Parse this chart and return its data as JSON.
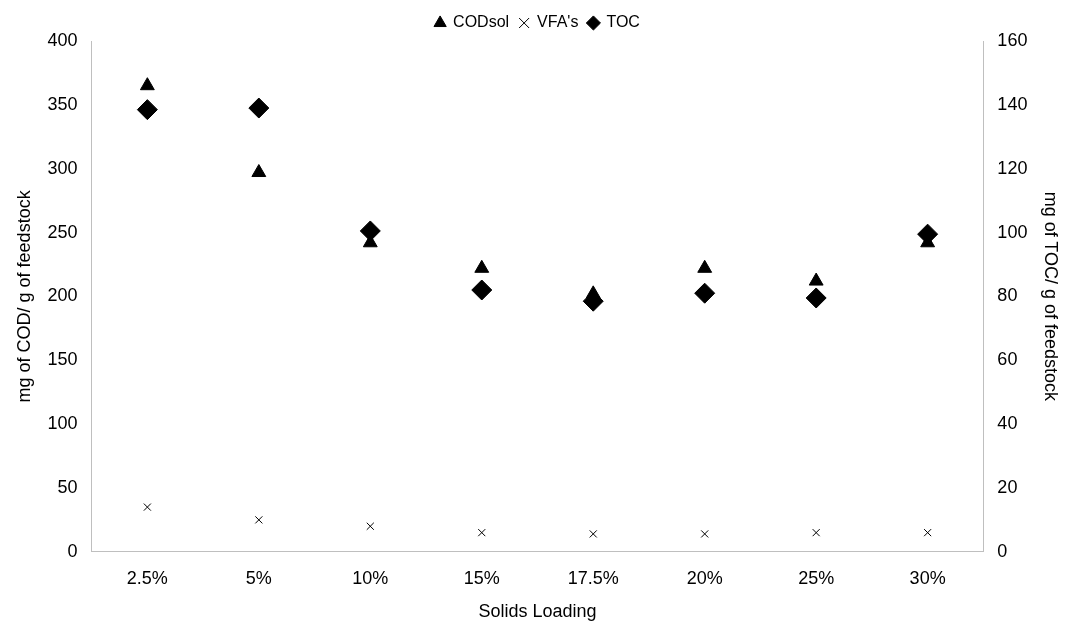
{
  "chart_data": {
    "type": "scatter",
    "xlabel": "Solids Loading",
    "ylabel": "mg of COD/ g of feedstock",
    "y2label": "mg of TOC/ g of feedstock",
    "categories": [
      "2.5%",
      "5%",
      "10%",
      "15%",
      "17.5%",
      "20%",
      "25%",
      "30%"
    ],
    "series": [
      {
        "name": "CODsol",
        "color": "#000000",
        "marker": "triangle",
        "values": [
          365,
          297,
          242,
          222,
          202,
          222,
          212,
          242
        ]
      },
      {
        "name": "VFA's",
        "color": "#000000",
        "marker": "cross",
        "values": [
          35,
          25,
          20,
          15,
          14,
          14,
          15,
          15
        ]
      },
      {
        "name": "TOC",
        "color": "#000000",
        "marker": "diamond",
        "axis": "y2",
        "values": [
          138.5,
          139,
          100.5,
          82,
          78.5,
          81,
          79.5,
          99.5
        ]
      }
    ],
    "ylim": [
      0,
      400
    ],
    "yticks": [
      0,
      50,
      100,
      150,
      200,
      250,
      300,
      350,
      400
    ],
    "y2lim": [
      0,
      160
    ],
    "y2ticks": [
      0,
      20,
      40,
      60,
      80,
      100,
      120,
      140,
      160
    ],
    "grid": false,
    "legend": "top"
  }
}
